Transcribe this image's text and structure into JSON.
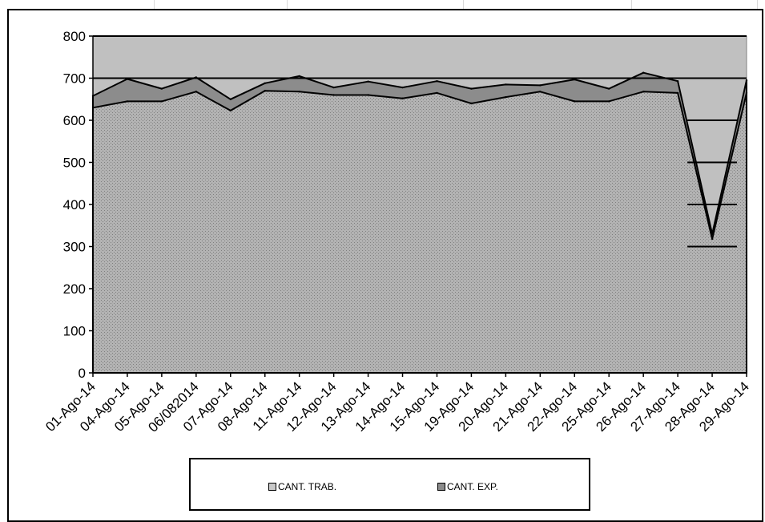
{
  "chart_data": {
    "type": "area",
    "categories": [
      "01-Ago-14",
      "04-Ago-14",
      "05-Ago-14",
      "06/082014",
      "07-Ago-14",
      "08-Ago-14",
      "11-Ago-14",
      "12-Ago-14",
      "13-Ago-14",
      "14-Ago-14",
      "15-Ago-14",
      "19-Ago-14",
      "20-Ago-14",
      "21-Ago-14",
      "22-Ago-14",
      "25-Ago-14",
      "26-Ago-14",
      "27-Ago-14",
      "28-Ago-14",
      "29-Ago-14"
    ],
    "series": [
      {
        "name": "CANT. TRAB.",
        "values": [
          630,
          645,
          645,
          668,
          623,
          670,
          668,
          660,
          660,
          652,
          665,
          640,
          655,
          668,
          645,
          645,
          668,
          665,
          318,
          665
        ]
      },
      {
        "name": "CANT. EXP.",
        "values": [
          658,
          698,
          675,
          702,
          650,
          688,
          705,
          678,
          692,
          678,
          693,
          675,
          685,
          683,
          697,
          675,
          713,
          693,
          330,
          695
        ]
      }
    ],
    "ylim": [
      0,
      800
    ],
    "yticks": [
      0,
      100,
      200,
      300,
      400,
      500,
      600,
      700,
      800
    ],
    "legend": "bottom",
    "grid": true,
    "colors": {
      "plot_bg": "#c0c0c0",
      "trab_fill": "#a6a6a6",
      "exp_fill": "#8c8c8c"
    }
  }
}
